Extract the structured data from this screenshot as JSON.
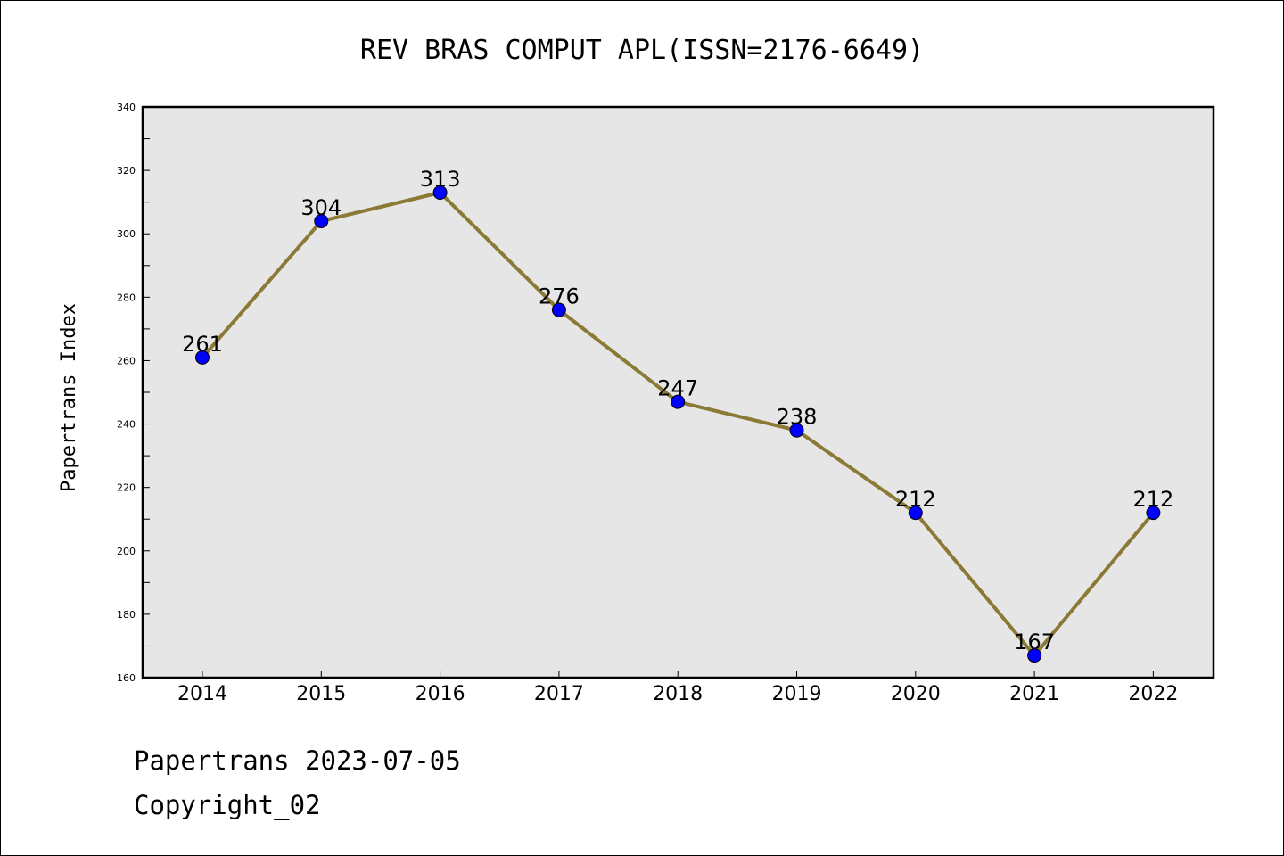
{
  "chart_data": {
    "type": "line",
    "title": "REV BRAS COMPUT APL(ISSN=2176-6649)",
    "xlabel": "",
    "ylabel": "Papertrans Index",
    "categories": [
      "2014",
      "2015",
      "2016",
      "2017",
      "2018",
      "2019",
      "2020",
      "2021",
      "2022"
    ],
    "values": [
      261,
      304,
      313,
      276,
      247,
      238,
      212,
      167,
      212
    ],
    "data_labels": [
      "261",
      "304",
      "313",
      "276",
      "247",
      "238",
      "212",
      "167",
      "212"
    ],
    "ylim": [
      160,
      340
    ],
    "yticks": [
      "160",
      "180",
      "200",
      "220",
      "240",
      "260",
      "280",
      "300",
      "320",
      "340"
    ],
    "grid": false,
    "plot_background": "#e6e6e6",
    "line_color": "#8b7a35",
    "marker_color": "#0000ff"
  },
  "footer": {
    "date_line": "Papertrans 2023-07-05",
    "copyright": "Copyright_02"
  }
}
